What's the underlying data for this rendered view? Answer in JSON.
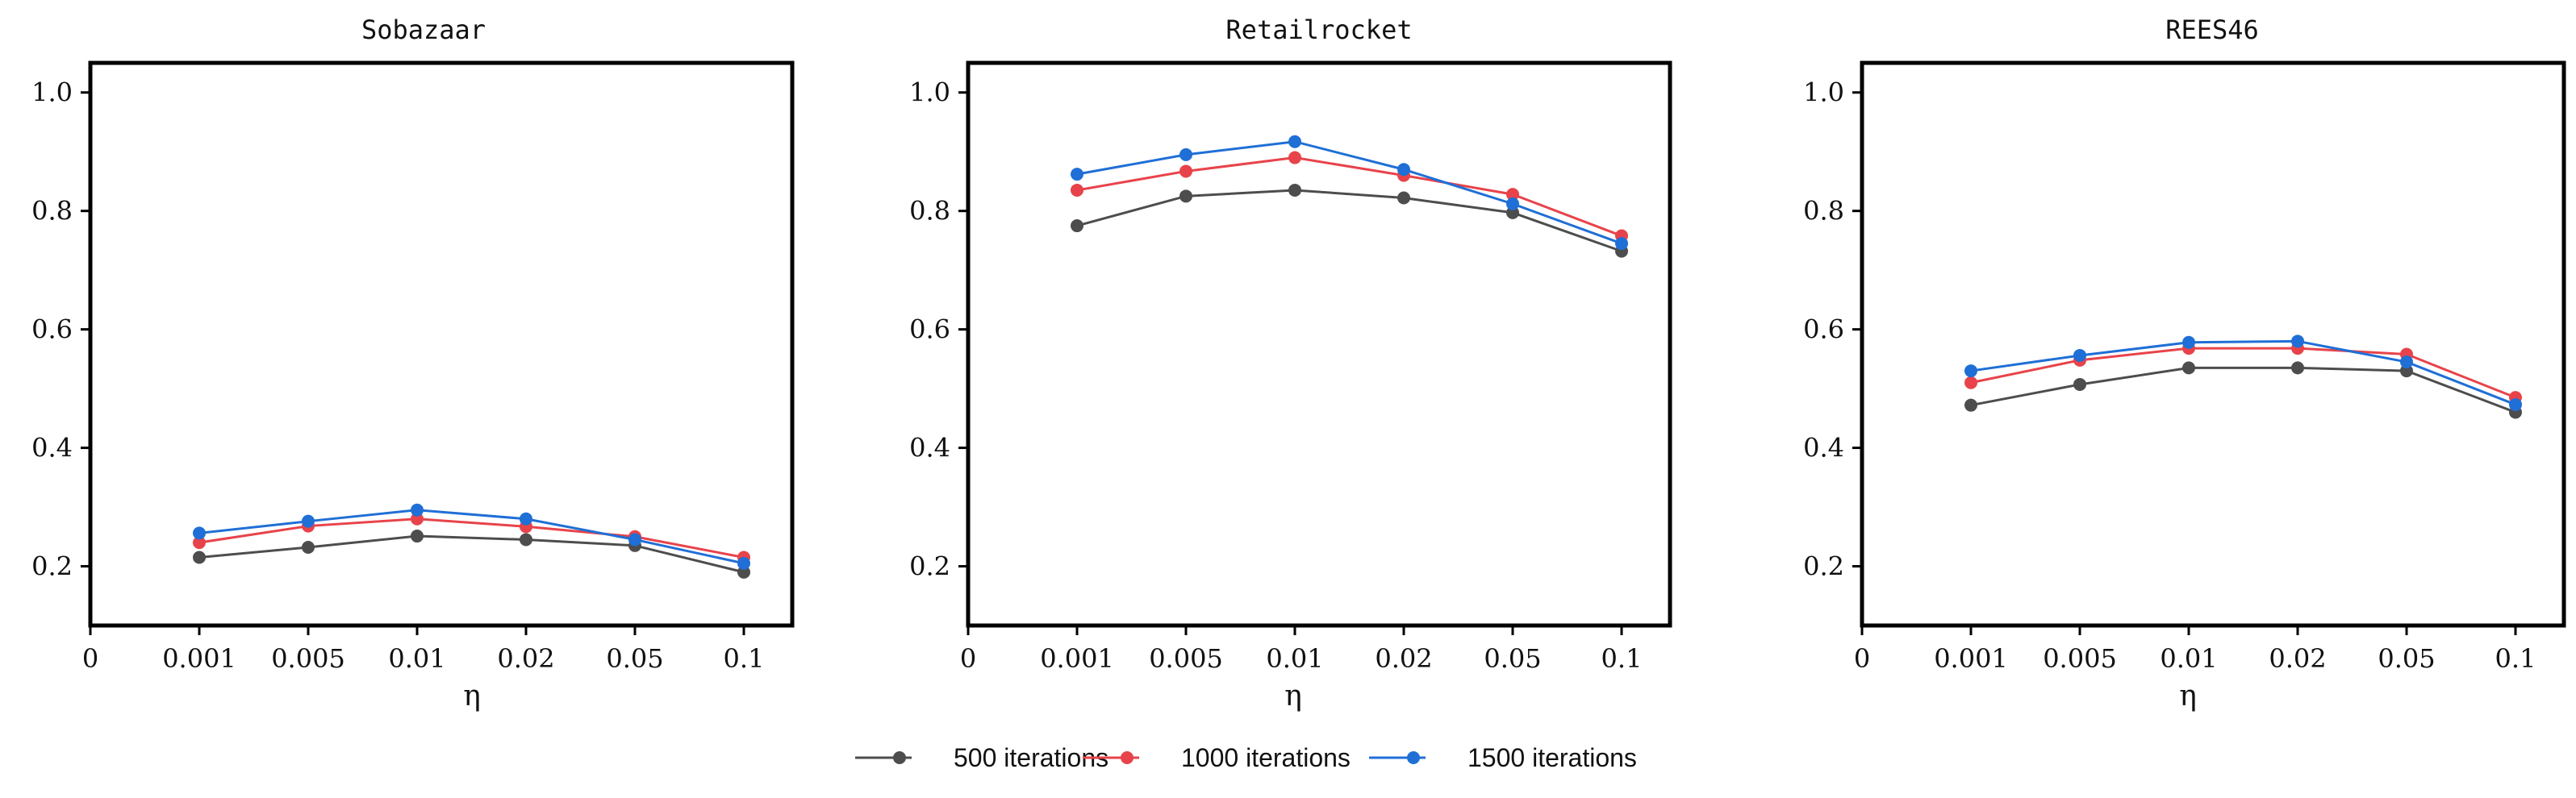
{
  "chart_data": [
    {
      "type": "line",
      "title": "Sobazaar",
      "xlabel": "η",
      "ylabel": "",
      "x_ticks": [
        "0",
        "0.001",
        "0.005",
        "0.01",
        "0.02",
        "0.05",
        "0.1"
      ],
      "categories": [
        "0.001",
        "0.005",
        "0.01",
        "0.02",
        "0.05",
        "0.1"
      ],
      "yticks": [
        "0.2",
        "0.4",
        "0.6",
        "0.8",
        "1.0"
      ],
      "ylim": [
        0.1,
        1.05
      ],
      "series": [
        {
          "name": "500 iterations",
          "values": [
            0.215,
            0.232,
            0.251,
            0.245,
            0.235,
            0.19
          ]
        },
        {
          "name": "1000 iterations",
          "values": [
            0.24,
            0.268,
            0.28,
            0.267,
            0.25,
            0.215
          ]
        },
        {
          "name": "1500 iterations",
          "values": [
            0.256,
            0.276,
            0.295,
            0.28,
            0.245,
            0.205
          ]
        }
      ]
    },
    {
      "type": "line",
      "title": "Retailrocket",
      "xlabel": "η",
      "ylabel": "",
      "x_ticks": [
        "0",
        "0.001",
        "0.005",
        "0.01",
        "0.02",
        "0.05",
        "0.1"
      ],
      "categories": [
        "0.001",
        "0.005",
        "0.01",
        "0.02",
        "0.05",
        "0.1"
      ],
      "yticks": [
        "0.2",
        "0.4",
        "0.6",
        "0.8",
        "1.0"
      ],
      "ylim": [
        0.1,
        1.05
      ],
      "series": [
        {
          "name": "500 iterations",
          "values": [
            0.775,
            0.825,
            0.835,
            0.822,
            0.797,
            0.732
          ]
        },
        {
          "name": "1000 iterations",
          "values": [
            0.835,
            0.867,
            0.89,
            0.86,
            0.828,
            0.758
          ]
        },
        {
          "name": "1500 iterations",
          "values": [
            0.862,
            0.895,
            0.917,
            0.87,
            0.812,
            0.745
          ]
        }
      ]
    },
    {
      "type": "line",
      "title": "REES46",
      "xlabel": "η",
      "ylabel": "",
      "x_ticks": [
        "0",
        "0.001",
        "0.005",
        "0.01",
        "0.02",
        "0.05",
        "0.1"
      ],
      "categories": [
        "0.001",
        "0.005",
        "0.01",
        "0.02",
        "0.05",
        "0.1"
      ],
      "yticks": [
        "0.2",
        "0.4",
        "0.6",
        "0.8",
        "1.0"
      ],
      "ylim": [
        0.1,
        1.05
      ],
      "series": [
        {
          "name": "500 iterations",
          "values": [
            0.472,
            0.507,
            0.535,
            0.535,
            0.53,
            0.46
          ]
        },
        {
          "name": "1000 iterations",
          "values": [
            0.51,
            0.548,
            0.568,
            0.568,
            0.558,
            0.485
          ]
        },
        {
          "name": "1500 iterations",
          "values": [
            0.53,
            0.556,
            0.578,
            0.58,
            0.545,
            0.473
          ]
        }
      ]
    }
  ],
  "legend": {
    "position": "bottom-center",
    "entries": [
      {
        "label": "500 iterations",
        "color": "#4d4d4d"
      },
      {
        "label": "1000 iterations",
        "color": "#e8434a"
      },
      {
        "label": "1500 iterations",
        "color": "#1f6fd6"
      }
    ]
  },
  "grid": false
}
